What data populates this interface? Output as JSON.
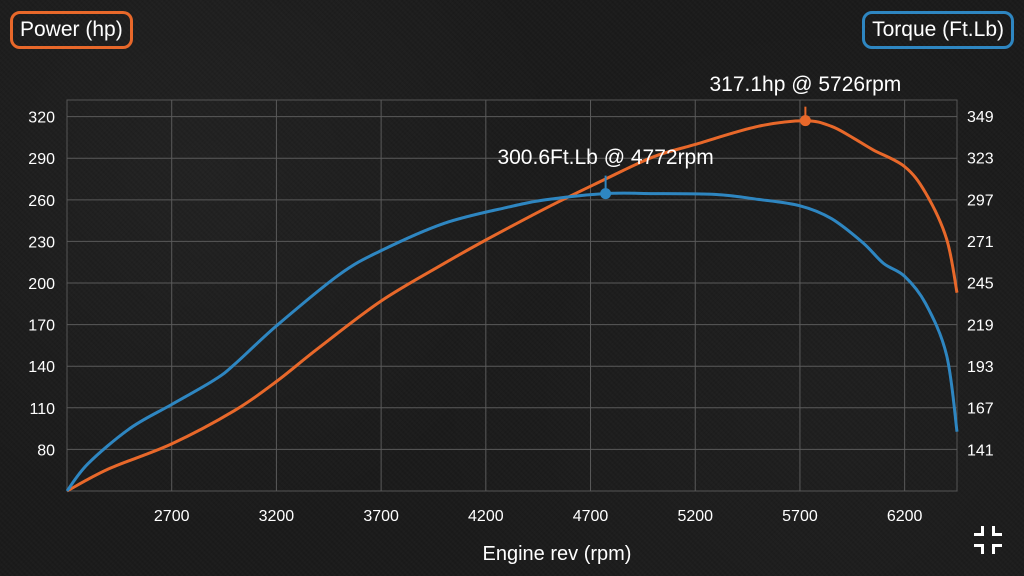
{
  "legend": {
    "power_label": "Power (hp)",
    "torque_label": "Torque (Ft.Lb)",
    "power_color": "#e8682a",
    "torque_color": "#2e86c1"
  },
  "controls": {
    "expand_icon": "collapse-arrows-icon"
  },
  "chart_data": {
    "type": "line",
    "xlabel": "Engine rev (rpm)",
    "xlim": [
      2200,
      6450
    ],
    "x_ticks": [
      2700,
      3200,
      3700,
      4200,
      4700,
      5200,
      5700,
      6200
    ],
    "y_left": {
      "label": "Power (hp)",
      "lim": [
        50,
        332
      ],
      "ticks": [
        80,
        110,
        140,
        170,
        200,
        230,
        260,
        290,
        320
      ]
    },
    "y_right": {
      "label": "Torque (Ft.Lb)",
      "lim": [
        115,
        359
      ],
      "ticks": [
        141,
        167,
        193,
        219,
        245,
        271,
        297,
        323,
        349
      ]
    },
    "grid": true,
    "series": [
      {
        "name": "Power (hp)",
        "axis": "left",
        "x": [
          2200,
          2400,
          2700,
          3000,
          3200,
          3400,
          3700,
          4000,
          4200,
          4500,
          4772,
          5000,
          5200,
          5500,
          5726,
          5850,
          5950,
          6050,
          6200,
          6300,
          6400,
          6450
        ],
        "y": [
          50,
          66,
          84,
          108,
          129,
          153,
          187,
          214,
          231,
          255,
          275,
          291,
          300,
          313,
          317.1,
          313,
          305,
          296,
          284,
          265,
          232,
          193
        ]
      },
      {
        "name": "Torque (Ft.Lb)",
        "axis": "right",
        "x": [
          2200,
          2300,
          2500,
          2700,
          2900,
          3000,
          3200,
          3500,
          3700,
          4000,
          4300,
          4500,
          4772,
          5000,
          5300,
          5500,
          5700,
          5850,
          6000,
          6100,
          6200,
          6300,
          6400,
          6450
        ],
        "y": [
          115,
          132,
          154,
          169,
          184,
          194,
          218,
          250,
          265,
          282,
          292,
          297,
          300.6,
          300.6,
          300,
          297,
          293,
          285,
          270,
          257,
          249,
          232,
          200,
          152
        ]
      }
    ],
    "annotations": [
      {
        "text": "317.1hp @ 5726rpm",
        "series": "Power (hp)",
        "x": 5726,
        "y": 317.1
      },
      {
        "text": "300.6Ft.Lb @ 4772rpm",
        "series": "Torque (Ft.Lb)",
        "x": 4772,
        "y": 300.6
      }
    ]
  }
}
